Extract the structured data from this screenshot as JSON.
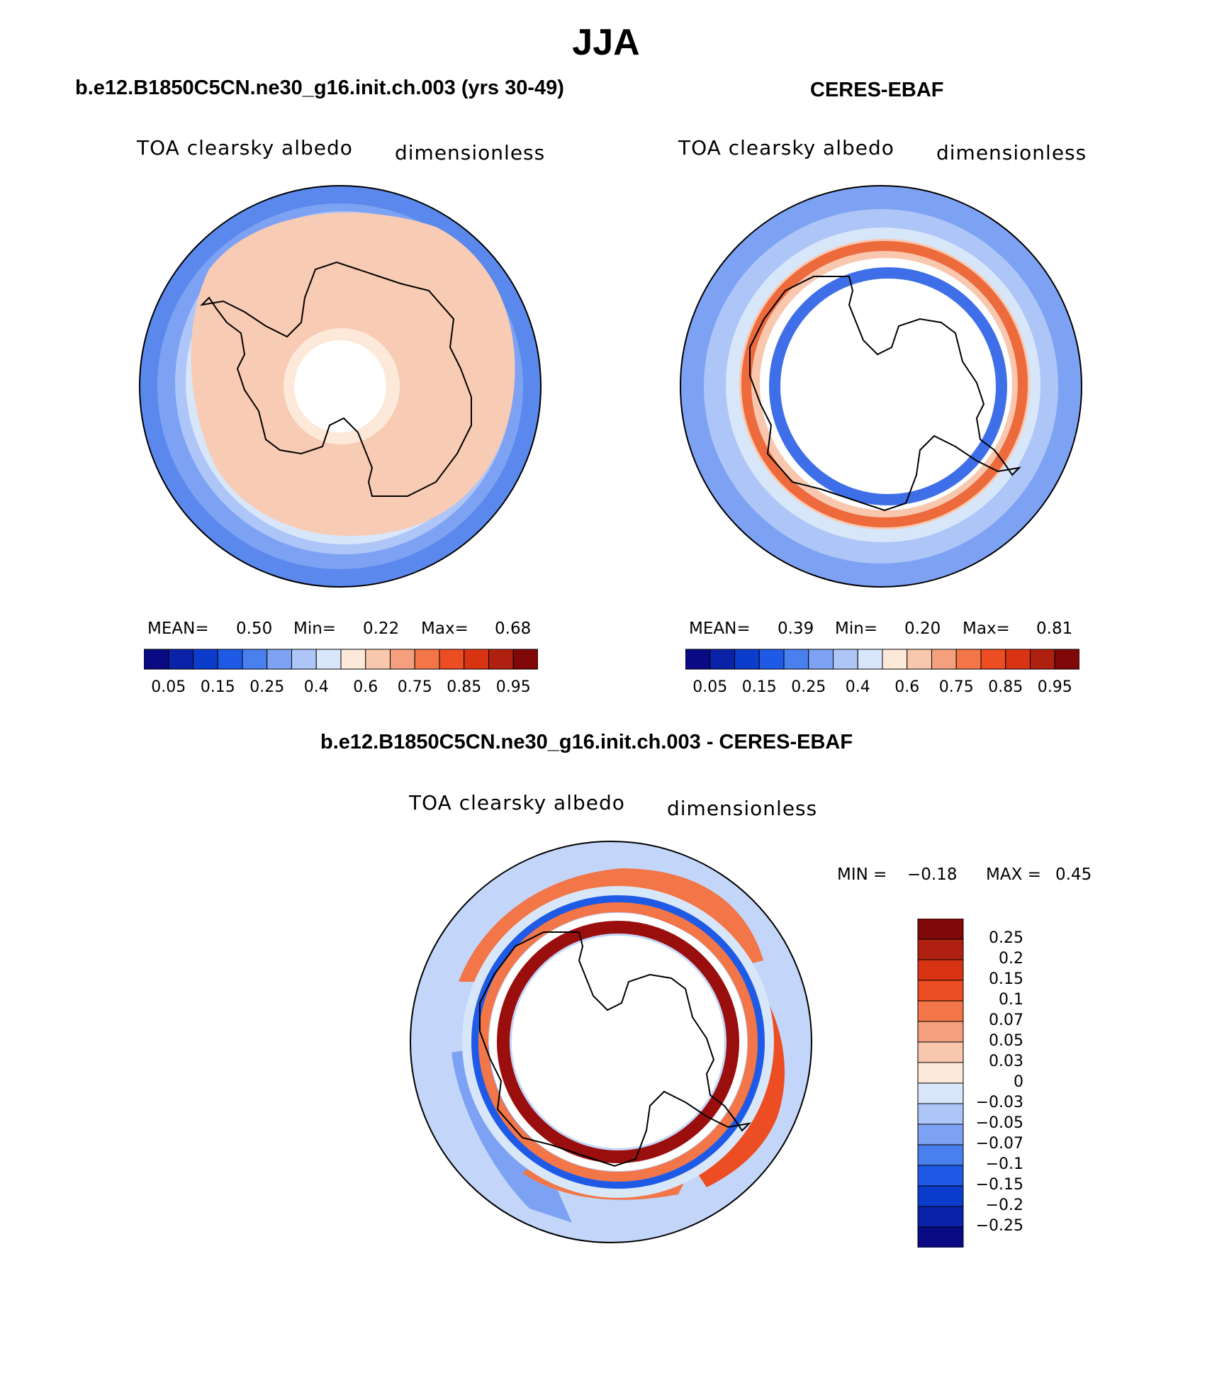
{
  "title": "JJA",
  "panels": [
    {
      "title": "b.e12.B1850C5CN.ne30_g16.init.ch.003 (yrs 30-49)",
      "variable": "TOA clearsky albedo",
      "units": "dimensionless",
      "stats": {
        "mean_label": "MEAN=",
        "mean": "0.50",
        "min_label": "Min=",
        "min": "0.22",
        "max_label": "Max=",
        "max": "0.68"
      }
    },
    {
      "title": "CERES-EBAF",
      "variable": "TOA clearsky albedo",
      "units": "dimensionless",
      "stats": {
        "mean_label": "MEAN=",
        "mean": "0.39",
        "min_label": "Min=",
        "min": "0.20",
        "max_label": "Max=",
        "max": "0.81"
      }
    },
    {
      "title": "b.e12.B1850C5CN.ne30_g16.init.ch.003 - CERES-EBAF",
      "variable": "TOA clearsky albedo",
      "units": "dimensionless",
      "stats": {
        "min_label": "MIN =",
        "min": "−0.18",
        "max_label": "MAX =",
        "max": "0.45"
      }
    }
  ],
  "colorbar_abs": {
    "colors": [
      "#0a0a85",
      "#0a22a8",
      "#0c3ccc",
      "#1f5ae6",
      "#4a7fee",
      "#7ea2f3",
      "#aec5f7",
      "#d8e6fa",
      "#fde9d9",
      "#f8c7ae",
      "#f4a07e",
      "#f27648",
      "#ec4d22",
      "#d83414",
      "#b02010",
      "#800808"
    ],
    "tick_labels": [
      "0.05",
      "0.15",
      "0.25",
      "0.4",
      "0.6",
      "0.75",
      "0.85",
      "0.95"
    ]
  },
  "colorbar_diff": {
    "colors": [
      "#0a0a85",
      "#0a22a8",
      "#0c3ccc",
      "#1f5ae6",
      "#4a7fee",
      "#7ea2f3",
      "#aec5f7",
      "#d8e6fa",
      "#fde9d9",
      "#f8c7ae",
      "#f4a07e",
      "#f27648",
      "#ec4d22",
      "#d83414",
      "#b02010",
      "#800808"
    ],
    "tick_labels": [
      "0.25",
      "0.2",
      "0.15",
      "0.1",
      "0.07",
      "0.05",
      "0.03",
      "0",
      "−0.03",
      "−0.05",
      "−0.07",
      "−0.1",
      "−0.15",
      "−0.2",
      "−0.25"
    ]
  },
  "chart_data": {
    "type": "heatmap",
    "projection": "south polar stereographic",
    "season": "JJA",
    "contour_levels_abs": [
      0.05,
      0.1,
      0.15,
      0.2,
      0.25,
      0.3,
      0.4,
      0.5,
      0.6,
      0.7,
      0.75,
      0.8,
      0.85,
      0.9,
      0.95
    ],
    "contour_levels_diff": [
      -0.25,
      -0.2,
      -0.15,
      -0.1,
      -0.07,
      -0.05,
      -0.03,
      0,
      0.03,
      0.05,
      0.07,
      0.1,
      0.15,
      0.2,
      0.25
    ],
    "maps": [
      {
        "name": "model",
        "mean": 0.5,
        "min": 0.22,
        "max": 0.68
      },
      {
        "name": "obs",
        "mean": 0.39,
        "min": 0.2,
        "max": 0.81
      },
      {
        "name": "diff",
        "min": -0.18,
        "max": 0.45
      }
    ]
  }
}
